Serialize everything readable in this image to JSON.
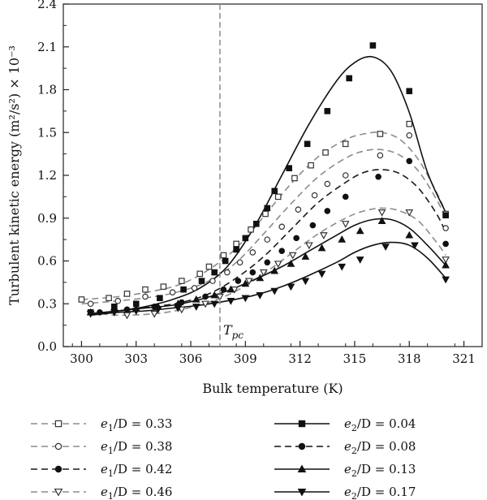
{
  "chart_data": {
    "type": "scatter",
    "xlabel": "Bulk temperature (K)",
    "ylabel": "Turbulent kinetic energy (m²/s²) × 10⁻³",
    "xlim": [
      299,
      322
    ],
    "ylim": [
      0.0,
      2.4
    ],
    "x_ticks": [
      300,
      303,
      306,
      309,
      312,
      315,
      318,
      321
    ],
    "y_ticks": [
      0.0,
      0.3,
      0.6,
      0.9,
      1.2,
      1.5,
      1.8,
      2.1,
      2.4
    ],
    "x_tick_labels": [
      "300",
      "303",
      "306",
      "309",
      "312",
      "315",
      "318",
      "321"
    ],
    "y_tick_labels": [
      "0.0",
      "0.3",
      "0.6",
      "0.9",
      "1.2",
      "1.5",
      "1.8",
      "2.1",
      "2.4"
    ],
    "grid": false,
    "legend_position": "bottom",
    "annotations": [
      {
        "text": "T",
        "subscript": "pc",
        "x": 307.6,
        "style": "vertical-dashed-line"
      }
    ],
    "series": [
      {
        "name_main": "e",
        "name_sub": "1",
        "name_rest": "/D = 0.33",
        "marker": "square-open",
        "line": "dashed",
        "color": "#8c8c8c",
        "x": [
          300.0,
          301.5,
          302.5,
          303.5,
          304.5,
          305.5,
          306.5,
          307.0,
          307.8,
          308.5,
          309.3,
          310.1,
          310.8,
          311.7,
          312.6,
          313.4,
          314.5,
          316.4,
          318.0,
          320.0
        ],
        "y": [
          0.33,
          0.34,
          0.37,
          0.4,
          0.42,
          0.46,
          0.51,
          0.56,
          0.64,
          0.72,
          0.82,
          0.93,
          1.05,
          1.18,
          1.27,
          1.36,
          1.42,
          1.49,
          1.56,
          0.93
        ],
        "fit_x": [
          300,
          302,
          304,
          305.5,
          307,
          308.5,
          310,
          311.5,
          313,
          314.5,
          315.5,
          316.5,
          317.5,
          318.5,
          319.5,
          320.0
        ],
        "fit_y": [
          0.33,
          0.35,
          0.39,
          0.44,
          0.54,
          0.69,
          0.91,
          1.14,
          1.33,
          1.45,
          1.49,
          1.5,
          1.45,
          1.31,
          1.08,
          0.94
        ]
      },
      {
        "name_main": "e",
        "name_sub": "1",
        "name_rest": "/D = 0.38",
        "marker": "circle-open",
        "line": "dashed",
        "color": "#8c8c8c",
        "x": [
          300.5,
          302.0,
          303.5,
          305.0,
          306.2,
          307.2,
          308.0,
          308.7,
          309.4,
          310.2,
          311.0,
          311.9,
          312.8,
          313.5,
          314.5,
          316.4,
          318.0,
          320.0
        ],
        "y": [
          0.3,
          0.32,
          0.35,
          0.38,
          0.41,
          0.46,
          0.52,
          0.59,
          0.66,
          0.75,
          0.84,
          0.96,
          1.06,
          1.14,
          1.2,
          1.34,
          1.48,
          0.83
        ],
        "fit_x": [
          300,
          302,
          304,
          305.5,
          307,
          308.5,
          310,
          311.5,
          313,
          314.5,
          315.5,
          316.5,
          317.5,
          318.5,
          319.5,
          320.0
        ],
        "fit_y": [
          0.3,
          0.32,
          0.35,
          0.39,
          0.46,
          0.59,
          0.79,
          1.0,
          1.19,
          1.32,
          1.37,
          1.38,
          1.34,
          1.23,
          1.03,
          0.9
        ]
      },
      {
        "name_main": "e",
        "name_sub": "1",
        "name_rest": "/D = 0.42",
        "marker": "circle-filled",
        "line": "dashed",
        "color": "#1a1a1a",
        "x": [
          301.0,
          302.5,
          304.0,
          305.5,
          306.8,
          307.8,
          308.6,
          309.4,
          310.2,
          311.0,
          311.8,
          312.7,
          313.5,
          314.5,
          316.3,
          318.0,
          320.0
        ],
        "y": [
          0.24,
          0.26,
          0.28,
          0.31,
          0.35,
          0.4,
          0.46,
          0.52,
          0.59,
          0.67,
          0.76,
          0.85,
          0.95,
          1.05,
          1.19,
          1.3,
          0.72
        ],
        "fit_x": [
          300.5,
          302,
          304,
          305.5,
          307,
          308.5,
          310,
          311.5,
          313,
          314.5,
          315.5,
          316.5,
          317.5,
          318.5,
          319.5,
          320.0
        ],
        "fit_y": [
          0.23,
          0.25,
          0.28,
          0.31,
          0.37,
          0.48,
          0.63,
          0.82,
          1.01,
          1.15,
          1.22,
          1.24,
          1.21,
          1.11,
          0.93,
          0.8
        ]
      },
      {
        "name_main": "e",
        "name_sub": "1",
        "name_rest": "/D = 0.46",
        "marker": "triangle-down-open",
        "line": "dashed",
        "color": "#8c8c8c",
        "x": [
          302.5,
          304.0,
          305.5,
          306.8,
          307.6,
          308.4,
          309.2,
          310.0,
          310.8,
          311.6,
          312.5,
          313.3,
          314.5,
          316.5,
          318.0,
          320.0
        ],
        "y": [
          0.22,
          0.23,
          0.26,
          0.3,
          0.35,
          0.4,
          0.46,
          0.52,
          0.58,
          0.64,
          0.71,
          0.78,
          0.86,
          0.94,
          0.94,
          0.61
        ],
        "fit_x": [
          300.5,
          302,
          304,
          305.5,
          307,
          308.5,
          310,
          311.5,
          313,
          314.5,
          315.5,
          316.5,
          317.5,
          318.5,
          319.5,
          320.0
        ],
        "fit_y": [
          0.24,
          0.22,
          0.23,
          0.26,
          0.31,
          0.39,
          0.51,
          0.65,
          0.79,
          0.9,
          0.95,
          0.97,
          0.95,
          0.88,
          0.73,
          0.64
        ]
      },
      {
        "name_main": "e",
        "name_sub": "2",
        "name_rest": "/D = 0.04",
        "marker": "square-filled",
        "line": "solid",
        "color": "#111111",
        "x": [
          300.5,
          301.8,
          303.0,
          304.3,
          305.6,
          306.6,
          307.3,
          307.9,
          308.5,
          309.0,
          309.6,
          310.2,
          310.6,
          311.4,
          312.4,
          313.5,
          314.7,
          316.0,
          318.0,
          320.0
        ],
        "y": [
          0.24,
          0.28,
          0.3,
          0.34,
          0.4,
          0.46,
          0.52,
          0.6,
          0.68,
          0.76,
          0.86,
          0.97,
          1.09,
          1.25,
          1.42,
          1.65,
          1.88,
          2.11,
          1.79,
          0.92
        ],
        "fit_x": [
          300.5,
          302,
          303.5,
          305,
          306.5,
          308,
          309.5,
          311,
          312.5,
          314,
          315,
          316,
          317,
          318,
          319,
          320.0
        ],
        "fit_y": [
          0.23,
          0.25,
          0.28,
          0.33,
          0.41,
          0.56,
          0.84,
          1.2,
          1.56,
          1.86,
          1.99,
          2.03,
          1.93,
          1.64,
          1.22,
          0.94
        ]
      },
      {
        "name_main": "e",
        "name_sub": "2",
        "name_rest": "/D = 0.08",
        "marker": "circle-filled",
        "line": "dashed",
        "color": "#111111",
        "x": [],
        "y": [],
        "fit_x": [],
        "fit_y": []
      },
      {
        "name_main": "e",
        "name_sub": "2",
        "name_rest": "/D = 0.13",
        "marker": "triangle-up-filled",
        "line": "solid",
        "color": "#111111",
        "x": [
          300.5,
          301.8,
          303.0,
          304.2,
          305.3,
          306.3,
          307.3,
          308.2,
          309.0,
          309.8,
          310.6,
          311.5,
          312.3,
          313.2,
          314.3,
          315.3,
          316.5,
          318.0,
          320.0
        ],
        "y": [
          0.24,
          0.26,
          0.27,
          0.28,
          0.3,
          0.33,
          0.36,
          0.4,
          0.44,
          0.48,
          0.53,
          0.58,
          0.63,
          0.69,
          0.75,
          0.81,
          0.88,
          0.78,
          0.57
        ],
        "fit_x": [
          300.5,
          302,
          303.5,
          305,
          306.5,
          308,
          309.5,
          311,
          312.5,
          314,
          315,
          316,
          317,
          318,
          319,
          320.0
        ],
        "fit_y": [
          0.23,
          0.25,
          0.27,
          0.29,
          0.33,
          0.39,
          0.47,
          0.56,
          0.67,
          0.78,
          0.85,
          0.89,
          0.89,
          0.83,
          0.71,
          0.57
        ]
      },
      {
        "name_main": "e",
        "name_sub": "2",
        "name_rest": "/D = 0.17",
        "marker": "triangle-down-filled",
        "line": "solid",
        "color": "#111111",
        "x": [
          300.5,
          301.8,
          303.0,
          304.2,
          305.3,
          306.3,
          307.3,
          308.2,
          309.0,
          309.8,
          310.6,
          311.5,
          312.3,
          313.2,
          314.3,
          315.3,
          316.7,
          318.3,
          320.0
        ],
        "y": [
          0.23,
          0.24,
          0.25,
          0.26,
          0.27,
          0.28,
          0.3,
          0.32,
          0.34,
          0.36,
          0.39,
          0.42,
          0.46,
          0.51,
          0.56,
          0.61,
          0.7,
          0.71,
          0.47
        ],
        "fit_x": [
          300.5,
          302,
          303.5,
          305,
          306.5,
          308,
          309.5,
          311,
          312.5,
          314,
          315,
          316,
          317,
          318,
          319,
          320.0
        ],
        "fit_y": [
          0.22,
          0.24,
          0.25,
          0.27,
          0.29,
          0.32,
          0.36,
          0.42,
          0.5,
          0.59,
          0.66,
          0.71,
          0.73,
          0.71,
          0.62,
          0.48
        ]
      }
    ]
  }
}
